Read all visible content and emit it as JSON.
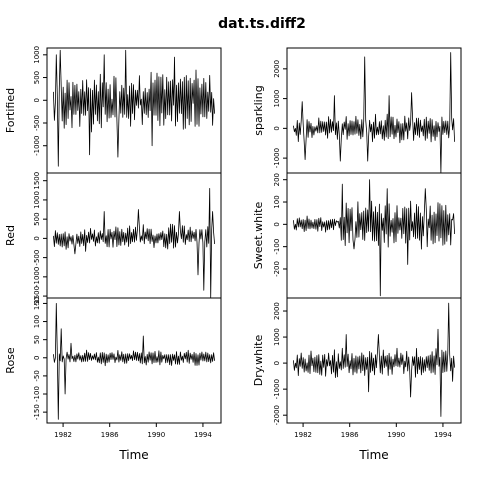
{
  "title": "dat.ts.diff2",
  "xlabel": "Time",
  "chart_data": [
    {
      "type": "line",
      "ylabel": "Fortified",
      "ylim": [
        -1600,
        1150
      ],
      "yticks": [
        -1000,
        -500,
        0,
        500,
        1000
      ],
      "ytick_labels": [
        "-1000",
        "-500",
        "0",
        "500",
        "1000"
      ],
      "seed": 11,
      "keypoints": [
        [
          1981.3,
          -50
        ],
        [
          1981.45,
          1000
        ],
        [
          1981.55,
          -1450
        ],
        [
          1981.75,
          1100
        ],
        [
          1984.3,
          -1200
        ],
        [
          1985.5,
          1000
        ],
        [
          1986.7,
          -1250
        ],
        [
          1987.35,
          1100
        ],
        [
          1989.6,
          -1000
        ],
        [
          1991.6,
          950
        ],
        [
          1994.8,
          -550
        ]
      ],
      "series": [
        {
          "name": "Fortified",
          "x_start": 1981.17,
          "x_end": 1995.0,
          "n": 166,
          "amplitude": 550,
          "drift": 0,
          "noise_shape": "uniform"
        }
      ]
    },
    {
      "type": "line",
      "ylabel": "Red",
      "ylim": [
        -1550,
        1700
      ],
      "yticks": [
        -1500,
        -1000,
        -500,
        0,
        500,
        1000,
        1500
      ],
      "ytick_labels": [
        "-1500",
        "-1000",
        "-500",
        "0",
        "500",
        "1000",
        "1500"
      ],
      "seed": 23,
      "keypoints": [
        [
          1981.3,
          200
        ],
        [
          1983.0,
          -400
        ],
        [
          1985.5,
          700
        ],
        [
          1988.5,
          750
        ],
        [
          1992.0,
          700
        ],
        [
          1993.6,
          -950
        ],
        [
          1994.1,
          -1350
        ],
        [
          1994.55,
          1300
        ],
        [
          1994.7,
          -1550
        ],
        [
          1994.8,
          700
        ]
      ],
      "series": [
        {
          "name": "Red",
          "x_start": 1981.17,
          "x_end": 1995.0,
          "n": 166,
          "amplitude": 260,
          "drift": 120,
          "noise_shape": "uniform"
        }
      ]
    },
    {
      "type": "line",
      "ylabel": "Rose",
      "ylim": [
        -180,
        165
      ],
      "yticks": [
        -150,
        -100,
        -50,
        0,
        50,
        100,
        150
      ],
      "ytick_labels": [
        "-150",
        "-100",
        "-50",
        "0",
        "50",
        "100",
        "150"
      ],
      "seed": 37,
      "keypoints": [
        [
          1981.3,
          0
        ],
        [
          1981.45,
          150
        ],
        [
          1981.6,
          -170
        ],
        [
          1981.85,
          80
        ],
        [
          1982.2,
          -100
        ],
        [
          1982.7,
          40
        ],
        [
          1988.9,
          60
        ],
        [
          1994.8,
          -10
        ]
      ],
      "series": [
        {
          "name": "Rose",
          "x_start": 1981.17,
          "x_end": 1995.0,
          "n": 166,
          "amplitude": 18,
          "drift": 0,
          "noise_shape": "uniform"
        }
      ]
    },
    {
      "type": "line",
      "ylabel": "sparkling",
      "ylim": [
        -1500,
        2700
      ],
      "yticks": [
        -1000,
        0,
        1000,
        2000
      ],
      "ytick_labels": [
        "-1000",
        "0",
        "1000",
        "2000"
      ],
      "seed": 53,
      "keypoints": [
        [
          1981.3,
          0
        ],
        [
          1981.9,
          900
        ],
        [
          1982.2,
          -1050
        ],
        [
          1984.7,
          1100
        ],
        [
          1985.2,
          -1100
        ],
        [
          1987.3,
          2400
        ],
        [
          1987.55,
          -1100
        ],
        [
          1989.4,
          1100
        ],
        [
          1991.3,
          1200
        ],
        [
          1993.8,
          -1500
        ],
        [
          1994.7,
          2550
        ],
        [
          1994.8,
          -50
        ]
      ],
      "series": [
        {
          "name": "sparkling",
          "x_start": 1981.17,
          "x_end": 1995.0,
          "n": 166,
          "amplitude": 380,
          "drift": 0,
          "noise_shape": "uniform"
        }
      ]
    },
    {
      "type": "line",
      "ylabel": "Sweet.white",
      "ylim": [
        -330,
        230
      ],
      "yticks": [
        -200,
        -100,
        0,
        100,
        200
      ],
      "ytick_labels": [
        "-200",
        "-100",
        "0",
        "100",
        "200"
      ],
      "seed": 71,
      "keypoints": [
        [
          1981.3,
          0
        ],
        [
          1984.9,
          10
        ],
        [
          1985.35,
          180
        ],
        [
          1986.4,
          -110
        ],
        [
          1987.7,
          200
        ],
        [
          1988.6,
          -320
        ],
        [
          1989.2,
          160
        ],
        [
          1991.0,
          -180
        ],
        [
          1992.5,
          160
        ],
        [
          1994.8,
          20
        ]
      ],
      "series": [
        {
          "name": "Sweet.white",
          "x_start": 1981.17,
          "x_end": 1995.0,
          "n": 166,
          "amplitude": 30,
          "drift": 0,
          "noise_shape": "regime",
          "regime_x": 1985.2,
          "regime_amplitude": 95
        }
      ]
    },
    {
      "type": "line",
      "ylabel": "Dry.white",
      "ylim": [
        -2300,
        2500
      ],
      "yticks": [
        -2000,
        -1000,
        0,
        1000,
        2000
      ],
      "ytick_labels": [
        "-2000",
        "-1000",
        "0",
        "1000",
        "2000"
      ],
      "seed": 97,
      "keypoints": [
        [
          1981.3,
          0
        ],
        [
          1985.7,
          1100
        ],
        [
          1987.6,
          -1100
        ],
        [
          1988.5,
          1100
        ],
        [
          1991.2,
          -1300
        ],
        [
          1993.6,
          1300
        ],
        [
          1993.8,
          -2050
        ],
        [
          1994.5,
          2300
        ],
        [
          1994.8,
          -700
        ]
      ],
      "series": [
        {
          "name": "Dry.white",
          "x_start": 1981.17,
          "x_end": 1995.0,
          "n": 166,
          "amplitude": 450,
          "drift": 0,
          "noise_shape": "uniform"
        }
      ]
    }
  ],
  "x_axis": {
    "xlim": [
      1980.62,
      1995.55
    ],
    "ticks": [
      1982,
      1986,
      1990,
      1994
    ],
    "tick_labels": [
      "1982",
      "1986",
      "1990",
      "1994"
    ]
  }
}
